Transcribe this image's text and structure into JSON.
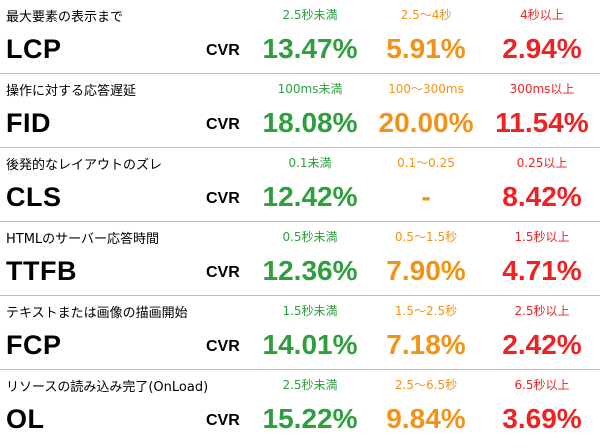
{
  "cvr_label": "CVR",
  "colors": {
    "good": "#2e9e3e",
    "mid": "#f29317",
    "bad": "#ee2222"
  },
  "metrics": [
    {
      "name": "LCP",
      "description": "最大要素の表示まで",
      "thresholds": [
        "2.5秒未満",
        "2.5〜4秒",
        "4秒以上"
      ],
      "cvr": [
        "13.47%",
        "5.91%",
        "2.94%"
      ]
    },
    {
      "name": "FID",
      "description": "操作に対する応答遅延",
      "thresholds": [
        "100ms未満",
        "100〜300ms",
        "300ms以上"
      ],
      "cvr": [
        "18.08%",
        "20.00%",
        "11.54%"
      ]
    },
    {
      "name": "CLS",
      "description": "後発的なレイアウトのズレ",
      "thresholds": [
        "0.1未満",
        "0.1〜0.25",
        "0.25以上"
      ],
      "cvr": [
        "12.42%",
        "-",
        "8.42%"
      ]
    },
    {
      "name": "TTFB",
      "description": "HTMLのサーバー応答時間",
      "thresholds": [
        "0.5秒未満",
        "0.5〜1.5秒",
        "1.5秒以上"
      ],
      "cvr": [
        "12.36%",
        "7.90%",
        "4.71%"
      ]
    },
    {
      "name": "FCP",
      "description": "テキストまたは画像の描画開始",
      "thresholds": [
        "1.5秒未満",
        "1.5〜2.5秒",
        "2.5秒以上"
      ],
      "cvr": [
        "14.01%",
        "7.18%",
        "2.42%"
      ]
    },
    {
      "name": "OL",
      "description": "リソースの読み込み完了(OnLoad)",
      "thresholds": [
        "2.5秒未満",
        "2.5〜6.5秒",
        "6.5秒以上"
      ],
      "cvr": [
        "15.22%",
        "9.84%",
        "3.69%"
      ]
    }
  ]
}
